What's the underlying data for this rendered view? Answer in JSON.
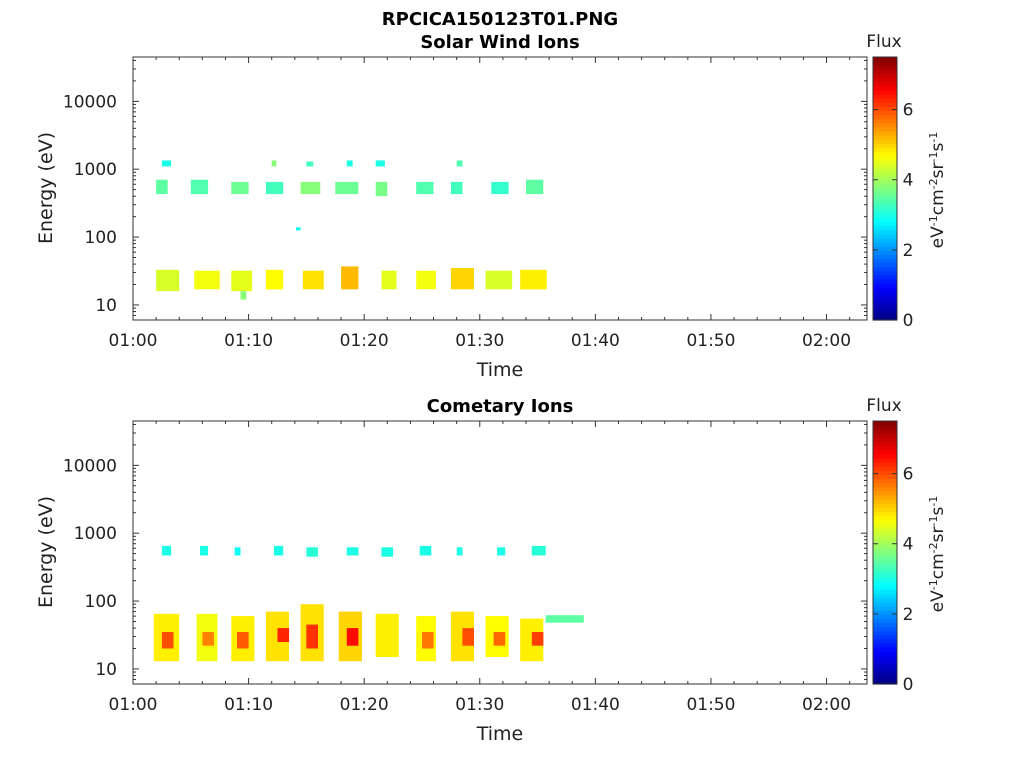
{
  "figure": {
    "title": "RPCICA150123T01.PNG",
    "colormap": [
      "#000080",
      "#0000ff",
      "#0080ff",
      "#00ffff",
      "#80ff80",
      "#ffff00",
      "#ff8000",
      "#ff0000",
      "#800000"
    ],
    "background": "#ffffff"
  },
  "chart_data": [
    {
      "type": "heatmap",
      "title": "Solar Wind Ions",
      "xlabel": "Time",
      "ylabel": "Energy (eV)",
      "x_ticks": [
        "01:00",
        "01:10",
        "01:20",
        "01:30",
        "01:40",
        "01:50",
        "02:00"
      ],
      "x_range_minutes": [
        0,
        63.5
      ],
      "y_ticks": [
        "10",
        "100",
        "1000",
        "10000"
      ],
      "y_scale": "log",
      "y_range": [
        6,
        45000
      ],
      "colorbar": {
        "label": "Flux",
        "unit": "eV-1cm-2sr-1s-1",
        "range": [
          0,
          7.5
        ],
        "ticks": [
          "0",
          "2",
          "4",
          "6"
        ]
      },
      "blocks": [
        {
          "t0": 2.0,
          "t1": 3.0,
          "e0": 430,
          "e1": 700,
          "v": 3.5
        },
        {
          "t0": 2.5,
          "t1": 3.3,
          "e0": 1100,
          "e1": 1350,
          "v": 3.0
        },
        {
          "t0": 2.0,
          "t1": 4.0,
          "e0": 16,
          "e1": 33,
          "v": 4.4
        },
        {
          "t0": 5.0,
          "t1": 6.5,
          "e0": 430,
          "e1": 700,
          "v": 3.4
        },
        {
          "t0": 5.3,
          "t1": 7.5,
          "e0": 17,
          "e1": 32,
          "v": 4.6
        },
        {
          "t0": 8.5,
          "t1": 10.0,
          "e0": 430,
          "e1": 650,
          "v": 3.6
        },
        {
          "t0": 8.5,
          "t1": 10.3,
          "e0": 16,
          "e1": 32,
          "v": 4.5
        },
        {
          "t0": 9.3,
          "t1": 9.8,
          "e0": 12,
          "e1": 16,
          "v": 3.8
        },
        {
          "t0": 11.5,
          "t1": 13.0,
          "e0": 430,
          "e1": 650,
          "v": 3.3
        },
        {
          "t0": 12.0,
          "t1": 12.4,
          "e0": 1100,
          "e1": 1350,
          "v": 3.8
        },
        {
          "t0": 11.5,
          "t1": 13.0,
          "e0": 17,
          "e1": 33,
          "v": 4.7
        },
        {
          "t0": 14.1,
          "t1": 14.5,
          "e0": 125,
          "e1": 140,
          "v": 3.0
        },
        {
          "t0": 14.5,
          "t1": 16.2,
          "e0": 430,
          "e1": 650,
          "v": 3.8
        },
        {
          "t0": 15.0,
          "t1": 15.6,
          "e0": 1100,
          "e1": 1300,
          "v": 3.3
        },
        {
          "t0": 14.7,
          "t1": 16.5,
          "e0": 17,
          "e1": 32,
          "v": 4.9
        },
        {
          "t0": 17.5,
          "t1": 19.5,
          "e0": 430,
          "e1": 650,
          "v": 3.6
        },
        {
          "t0": 18.5,
          "t1": 19.0,
          "e0": 1100,
          "e1": 1350,
          "v": 3.0
        },
        {
          "t0": 18.0,
          "t1": 19.5,
          "e0": 17,
          "e1": 37,
          "v": 5.2
        },
        {
          "t0": 21.0,
          "t1": 22.0,
          "e0": 400,
          "e1": 650,
          "v": 3.7
        },
        {
          "t0": 21.0,
          "t1": 21.8,
          "e0": 1100,
          "e1": 1350,
          "v": 3.0
        },
        {
          "t0": 21.5,
          "t1": 22.8,
          "e0": 17,
          "e1": 32,
          "v": 4.5
        },
        {
          "t0": 24.5,
          "t1": 26.0,
          "e0": 430,
          "e1": 650,
          "v": 3.4
        },
        {
          "t0": 24.5,
          "t1": 26.2,
          "e0": 17,
          "e1": 32,
          "v": 4.6
        },
        {
          "t0": 27.5,
          "t1": 28.5,
          "e0": 430,
          "e1": 650,
          "v": 3.3
        },
        {
          "t0": 28.0,
          "t1": 28.5,
          "e0": 1100,
          "e1": 1350,
          "v": 3.4
        },
        {
          "t0": 27.5,
          "t1": 29.5,
          "e0": 17,
          "e1": 35,
          "v": 5.0
        },
        {
          "t0": 31.0,
          "t1": 32.5,
          "e0": 430,
          "e1": 650,
          "v": 3.2
        },
        {
          "t0": 30.5,
          "t1": 32.8,
          "e0": 17,
          "e1": 32,
          "v": 4.4
        },
        {
          "t0": 34.0,
          "t1": 35.5,
          "e0": 430,
          "e1": 700,
          "v": 3.5
        },
        {
          "t0": 33.5,
          "t1": 35.8,
          "e0": 17,
          "e1": 33,
          "v": 4.8
        }
      ]
    },
    {
      "type": "heatmap",
      "title": "Cometary Ions",
      "xlabel": "Time",
      "ylabel": "Energy (eV)",
      "x_ticks": [
        "01:00",
        "01:10",
        "01:20",
        "01:30",
        "01:40",
        "01:50",
        "02:00"
      ],
      "x_range_minutes": [
        0,
        63.5
      ],
      "y_ticks": [
        "10",
        "100",
        "1000",
        "10000"
      ],
      "y_scale": "log",
      "y_range": [
        6,
        45000
      ],
      "colorbar": {
        "label": "Flux",
        "unit": "eV-1cm-2sr-1s-1",
        "range": [
          0,
          7.5
        ],
        "ticks": [
          "0",
          "2",
          "4",
          "6"
        ]
      },
      "blocks": [
        {
          "t0": 2.5,
          "t1": 3.3,
          "e0": 470,
          "e1": 650,
          "v": 3.0
        },
        {
          "t0": 5.8,
          "t1": 6.5,
          "e0": 470,
          "e1": 650,
          "v": 3.0
        },
        {
          "t0": 8.8,
          "t1": 9.3,
          "e0": 470,
          "e1": 620,
          "v": 2.9
        },
        {
          "t0": 12.2,
          "t1": 13.0,
          "e0": 470,
          "e1": 650,
          "v": 3.0
        },
        {
          "t0": 15.0,
          "t1": 16.0,
          "e0": 450,
          "e1": 620,
          "v": 3.1
        },
        {
          "t0": 18.5,
          "t1": 19.5,
          "e0": 470,
          "e1": 620,
          "v": 3.0
        },
        {
          "t0": 21.5,
          "t1": 22.5,
          "e0": 450,
          "e1": 620,
          "v": 3.0
        },
        {
          "t0": 24.8,
          "t1": 25.8,
          "e0": 470,
          "e1": 650,
          "v": 3.0
        },
        {
          "t0": 28.0,
          "t1": 28.5,
          "e0": 470,
          "e1": 620,
          "v": 3.0
        },
        {
          "t0": 31.5,
          "t1": 32.2,
          "e0": 470,
          "e1": 620,
          "v": 3.0
        },
        {
          "t0": 34.5,
          "t1": 35.7,
          "e0": 470,
          "e1": 650,
          "v": 3.1
        },
        {
          "t0": 1.8,
          "t1": 4.0,
          "e0": 13,
          "e1": 65,
          "v": 4.8
        },
        {
          "t0": 2.5,
          "t1": 3.5,
          "e0": 20,
          "e1": 35,
          "v": 6.0
        },
        {
          "t0": 5.5,
          "t1": 7.3,
          "e0": 13,
          "e1": 65,
          "v": 4.6
        },
        {
          "t0": 6.0,
          "t1": 7.0,
          "e0": 22,
          "e1": 35,
          "v": 5.6
        },
        {
          "t0": 8.5,
          "t1": 10.5,
          "e0": 13,
          "e1": 60,
          "v": 4.8
        },
        {
          "t0": 9.0,
          "t1": 10.0,
          "e0": 20,
          "e1": 35,
          "v": 5.9
        },
        {
          "t0": 11.5,
          "t1": 13.5,
          "e0": 13,
          "e1": 70,
          "v": 4.9
        },
        {
          "t0": 12.5,
          "t1": 13.5,
          "e0": 25,
          "e1": 40,
          "v": 6.3
        },
        {
          "t0": 14.5,
          "t1": 16.5,
          "e0": 13,
          "e1": 90,
          "v": 4.9
        },
        {
          "t0": 15.0,
          "t1": 16.0,
          "e0": 20,
          "e1": 45,
          "v": 6.2
        },
        {
          "t0": 17.8,
          "t1": 19.8,
          "e0": 13,
          "e1": 70,
          "v": 5.0
        },
        {
          "t0": 18.5,
          "t1": 19.5,
          "e0": 22,
          "e1": 40,
          "v": 6.5
        },
        {
          "t0": 21.0,
          "t1": 23.0,
          "e0": 15,
          "e1": 65,
          "v": 4.8
        },
        {
          "t0": 24.5,
          "t1": 26.2,
          "e0": 13,
          "e1": 60,
          "v": 4.7
        },
        {
          "t0": 25.0,
          "t1": 26.0,
          "e0": 20,
          "e1": 35,
          "v": 5.7
        },
        {
          "t0": 27.5,
          "t1": 29.5,
          "e0": 13,
          "e1": 70,
          "v": 4.9
        },
        {
          "t0": 28.5,
          "t1": 29.5,
          "e0": 22,
          "e1": 40,
          "v": 6.0
        },
        {
          "t0": 30.5,
          "t1": 32.5,
          "e0": 15,
          "e1": 60,
          "v": 4.7
        },
        {
          "t0": 31.2,
          "t1": 32.2,
          "e0": 22,
          "e1": 35,
          "v": 5.8
        },
        {
          "t0": 33.5,
          "t1": 35.5,
          "e0": 13,
          "e1": 55,
          "v": 4.8
        },
        {
          "t0": 34.5,
          "t1": 35.5,
          "e0": 22,
          "e1": 35,
          "v": 6.1
        },
        {
          "t0": 35.7,
          "t1": 39.0,
          "e0": 48,
          "e1": 62,
          "v": 3.5
        }
      ]
    }
  ]
}
